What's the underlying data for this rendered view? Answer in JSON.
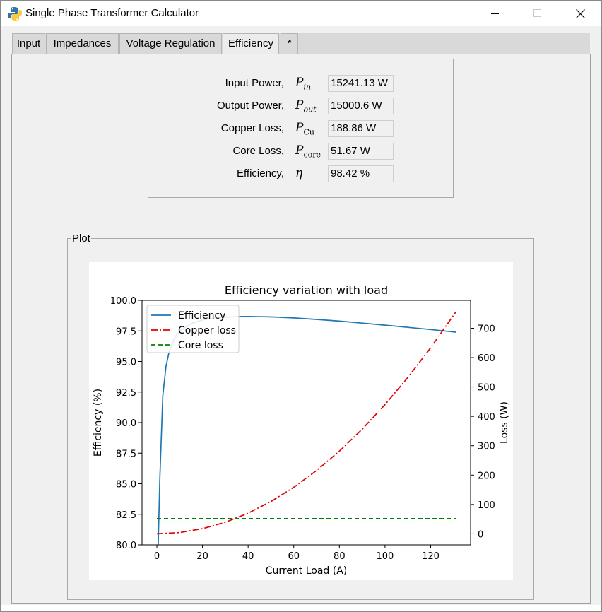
{
  "window": {
    "title": "Single Phase Transformer Calculator"
  },
  "tabs": [
    {
      "label": "Input",
      "active": false
    },
    {
      "label": "Impedances",
      "active": false
    },
    {
      "label": "Voltage Regulation",
      "active": false
    },
    {
      "label": "Efficiency",
      "active": true
    },
    {
      "label": "*",
      "active": false
    }
  ],
  "results": {
    "rows": [
      {
        "label": "Input Power,",
        "symbol": "P",
        "subscript": "in",
        "value": "15241.13 W"
      },
      {
        "label": "Output Power,",
        "symbol": "P",
        "subscript": "out",
        "value": "15000.6 W"
      },
      {
        "label": "Copper Loss,",
        "symbol": "P",
        "subscript": "Cu",
        "value": "188.86 W"
      },
      {
        "label": "Core Loss,",
        "symbol": "P",
        "subscript": "core",
        "value": "51.67 W"
      },
      {
        "label": "Efficiency,",
        "symbol": "η",
        "subscript": "",
        "value": "98.42 %"
      }
    ]
  },
  "plot_group": {
    "title": "Plot"
  },
  "chart_data": {
    "type": "line",
    "title": "Efficiency variation with load",
    "xlabel": "Current Load (A)",
    "ylabel": "Efficiency (%)",
    "y2label": "Loss (W)",
    "xlim": [
      -6.5,
      137.5
    ],
    "ylim": [
      80,
      100
    ],
    "y2lim": [
      -37.5,
      795
    ],
    "xticks": [
      0,
      20,
      40,
      60,
      80,
      100,
      120
    ],
    "yticks": [
      "80.0",
      "82.5",
      "85.0",
      "87.5",
      "90.0",
      "92.5",
      "95.0",
      "97.5",
      "100.0"
    ],
    "y2ticks": [
      0,
      100,
      200,
      300,
      400,
      500,
      600,
      700
    ],
    "legend_position": "upper-left",
    "colors": {
      "efficiency": "#1f77b4",
      "copper": "#e00000",
      "core": "#008000"
    },
    "series": [
      {
        "name": "Efficiency",
        "axis": "left",
        "style": "solid",
        "x": [
          0.6,
          1.3,
          2.6,
          4,
          5.5,
          8,
          10,
          15,
          20,
          25,
          30,
          35,
          40,
          50,
          60,
          70,
          80,
          90,
          100,
          110,
          120,
          131
        ],
        "y": [
          75.8,
          85.4,
          92.2,
          94.6,
          95.9,
          97.0,
          97.5,
          98.1,
          98.4,
          98.55,
          98.62,
          98.67,
          98.68,
          98.65,
          98.56,
          98.44,
          98.3,
          98.14,
          97.97,
          97.79,
          97.61,
          97.4
        ]
      },
      {
        "name": "Copper loss",
        "axis": "right",
        "style": "dashdot",
        "x": [
          0,
          10,
          20,
          30,
          40,
          50,
          60,
          70,
          80,
          90,
          100,
          110,
          120,
          131
        ],
        "y": [
          0,
          4.4,
          17.6,
          39.6,
          70.4,
          110,
          158.4,
          215.6,
          281.6,
          356.4,
          440,
          532.4,
          633.6,
          755
        ]
      },
      {
        "name": "Core loss",
        "axis": "right",
        "style": "dashed",
        "x": [
          0,
          131
        ],
        "y": [
          51.67,
          51.67
        ]
      }
    ]
  }
}
